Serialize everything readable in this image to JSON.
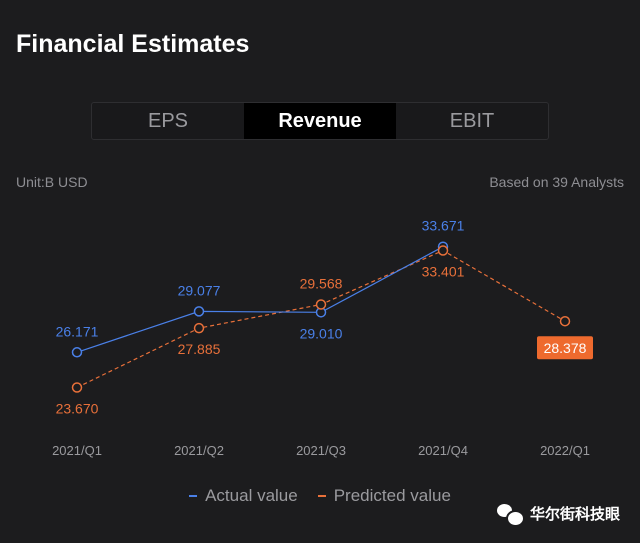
{
  "page": {
    "title": "Financial Estimates",
    "tabs": [
      {
        "label": "EPS",
        "active": false
      },
      {
        "label": "Revenue",
        "active": true
      },
      {
        "label": "EBIT",
        "active": false
      }
    ],
    "unit": "Unit:B USD",
    "analysts": "Based on 39 Analysts",
    "watermark": "华尔街科技眼"
  },
  "chart_data": {
    "type": "line",
    "categories": [
      "2021/Q1",
      "2021/Q2",
      "2021/Q3",
      "2021/Q4",
      "2022/Q1"
    ],
    "series": [
      {
        "name": "Actual value",
        "color": "#4a80e8",
        "style": "solid",
        "values": [
          26.171,
          29.077,
          29.01,
          33.671,
          null
        ],
        "labels": [
          "26.171",
          "29.077",
          "29.010",
          "33.671",
          null
        ]
      },
      {
        "name": "Predicted value",
        "color": "#e8703a",
        "style": "dashed",
        "values": [
          23.67,
          27.885,
          29.568,
          33.401,
          28.378
        ],
        "labels": [
          "23.670",
          "27.885",
          "29.568",
          "33.401",
          "28.378"
        ]
      }
    ],
    "highlighted": {
      "series": 1,
      "index": 4
    },
    "ylim": [
      22,
      35
    ],
    "grid": false,
    "legend": "bottom"
  }
}
